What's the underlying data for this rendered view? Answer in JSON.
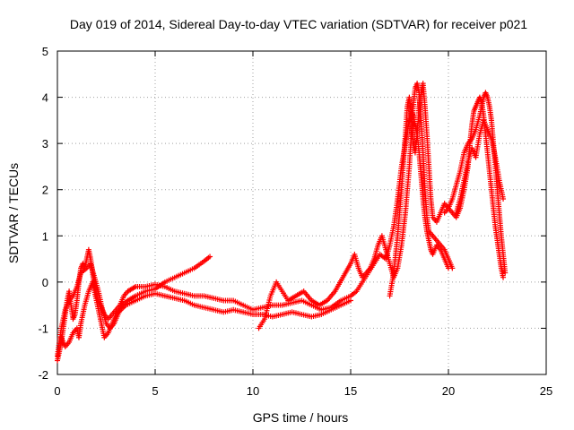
{
  "chart_data": {
    "type": "scatter",
    "title": "Day 019 of 2014, Sidereal Day-to-day VTEC variation (SDTVAR) for receiver p021",
    "xlabel": "GPS time / hours",
    "ylabel": "SDTVAR / TECUs",
    "xlim": [
      0,
      25
    ],
    "ylim": [
      -2,
      5
    ],
    "xticks": [
      0,
      5,
      10,
      15,
      20,
      25
    ],
    "yticks": [
      -2,
      -1,
      0,
      1,
      2,
      3,
      4,
      5
    ],
    "grid": true,
    "marker": "+",
    "color": "#ff0000",
    "series": [
      {
        "name": "p021",
        "segments": [
          [
            [
              0.0,
              -1.7
            ],
            [
              0.1,
              -1.5
            ],
            [
              0.2,
              -1.3
            ],
            [
              0.3,
              -1.0
            ],
            [
              0.4,
              -0.7
            ],
            [
              0.5,
              -0.4
            ],
            [
              0.6,
              -0.2
            ],
            [
              0.7,
              -0.5
            ],
            [
              0.8,
              -0.8
            ],
            [
              0.9,
              -0.7
            ],
            [
              1.0,
              -0.4
            ],
            [
              1.1,
              0.0
            ],
            [
              1.2,
              0.3
            ],
            [
              1.3,
              0.4
            ],
            [
              1.4,
              0.3
            ],
            [
              1.5,
              0.5
            ],
            [
              1.6,
              0.7
            ],
            [
              1.7,
              0.5
            ],
            [
              1.8,
              0.2
            ],
            [
              1.9,
              -0.1
            ],
            [
              2.0,
              -0.3
            ],
            [
              2.2,
              -0.5
            ],
            [
              2.4,
              -0.7
            ],
            [
              2.6,
              -0.8
            ],
            [
              2.8,
              -0.7
            ],
            [
              3.0,
              -0.6
            ],
            [
              3.2,
              -0.5
            ],
            [
              3.4,
              -0.3
            ],
            [
              3.6,
              -0.2
            ],
            [
              3.8,
              -0.15
            ],
            [
              4.0,
              -0.1
            ],
            [
              4.5,
              -0.1
            ],
            [
              5.0,
              -0.05
            ],
            [
              5.5,
              -0.1
            ],
            [
              6.0,
              -0.2
            ],
            [
              6.5,
              -0.25
            ],
            [
              7.0,
              -0.3
            ],
            [
              7.5,
              -0.3
            ],
            [
              8.0,
              -0.35
            ],
            [
              8.5,
              -0.4
            ],
            [
              9.0,
              -0.4
            ],
            [
              9.5,
              -0.5
            ],
            [
              10.0,
              -0.6
            ],
            [
              10.5,
              -0.55
            ],
            [
              11.0,
              -0.5
            ],
            [
              11.5,
              -0.5
            ],
            [
              12.0,
              -0.45
            ],
            [
              12.5,
              -0.4
            ],
            [
              13.0,
              -0.5
            ],
            [
              13.5,
              -0.6
            ],
            [
              14.0,
              -0.55
            ],
            [
              14.5,
              -0.4
            ],
            [
              15.0,
              -0.3
            ],
            [
              15.3,
              -0.2
            ],
            [
              15.6,
              0.0
            ],
            [
              15.9,
              0.2
            ],
            [
              16.2,
              0.4
            ],
            [
              16.5,
              0.6
            ],
            [
              16.8,
              0.5
            ],
            [
              17.0,
              0.8
            ],
            [
              17.2,
              1.2
            ],
            [
              17.4,
              1.8
            ],
            [
              17.6,
              2.5
            ],
            [
              17.8,
              3.0
            ],
            [
              18.0,
              3.5
            ],
            [
              18.1,
              3.7
            ],
            [
              18.2,
              3.6
            ],
            [
              18.3,
              3.4
            ],
            [
              18.4,
              3.2
            ],
            [
              18.5,
              2.8
            ],
            [
              18.6,
              2.3
            ],
            [
              18.7,
              1.8
            ],
            [
              18.8,
              1.4
            ],
            [
              18.9,
              1.1
            ],
            [
              19.0,
              0.9
            ],
            [
              19.1,
              0.7
            ],
            [
              19.2,
              0.6
            ],
            [
              19.4,
              0.8
            ],
            [
              19.6,
              0.7
            ],
            [
              19.8,
              0.5
            ],
            [
              20.0,
              0.3
            ]
          ],
          [
            [
              0.0,
              -1.6
            ],
            [
              0.2,
              -1.0
            ],
            [
              0.4,
              -0.6
            ],
            [
              0.6,
              -0.4
            ],
            [
              0.8,
              -0.3
            ],
            [
              1.0,
              -0.1
            ],
            [
              1.2,
              0.2
            ],
            [
              1.5,
              0.3
            ],
            [
              1.7,
              0.4
            ],
            [
              1.9,
              0.1
            ],
            [
              2.1,
              -0.2
            ],
            [
              2.3,
              -0.6
            ],
            [
              2.5,
              -0.9
            ],
            [
              2.7,
              -1.0
            ],
            [
              2.9,
              -0.9
            ],
            [
              3.1,
              -0.7
            ],
            [
              3.3,
              -0.5
            ],
            [
              3.6,
              -0.4
            ],
            [
              4.0,
              -0.3
            ],
            [
              4.5,
              -0.2
            ],
            [
              5.0,
              -0.15
            ],
            [
              5.5,
              0.0
            ],
            [
              6.0,
              0.1
            ],
            [
              6.5,
              0.2
            ],
            [
              7.0,
              0.3
            ],
            [
              7.5,
              0.45
            ],
            [
              7.8,
              0.55
            ]
          ],
          [
            [
              0.2,
              -1.2
            ],
            [
              0.4,
              -1.4
            ],
            [
              0.6,
              -1.3
            ],
            [
              0.8,
              -1.1
            ],
            [
              1.0,
              -1.0
            ],
            [
              1.1,
              -1.2
            ],
            [
              1.2,
              -0.9
            ],
            [
              1.4,
              -0.5
            ],
            [
              1.6,
              -0.2
            ],
            [
              1.8,
              0.0
            ],
            [
              2.0,
              -0.4
            ],
            [
              2.2,
              -0.8
            ],
            [
              2.4,
              -1.2
            ],
            [
              2.6,
              -1.1
            ],
            [
              2.8,
              -0.9
            ],
            [
              3.0,
              -0.7
            ],
            [
              3.5,
              -0.5
            ],
            [
              4.0,
              -0.4
            ],
            [
              4.5,
              -0.3
            ],
            [
              5.0,
              -0.25
            ],
            [
              5.5,
              -0.3
            ],
            [
              6.0,
              -0.35
            ],
            [
              6.5,
              -0.4
            ],
            [
              7.0,
              -0.5
            ],
            [
              7.5,
              -0.55
            ],
            [
              8.0,
              -0.6
            ],
            [
              8.5,
              -0.65
            ],
            [
              9.0,
              -0.6
            ],
            [
              9.5,
              -0.65
            ],
            [
              10.0,
              -0.7
            ],
            [
              10.5,
              -0.7
            ],
            [
              11.0,
              -0.75
            ],
            [
              11.5,
              -0.7
            ],
            [
              12.0,
              -0.65
            ],
            [
              12.5,
              -0.7
            ],
            [
              13.0,
              -0.75
            ],
            [
              13.5,
              -0.7
            ],
            [
              14.0,
              -0.6
            ],
            [
              14.5,
              -0.5
            ],
            [
              15.0,
              -0.4
            ]
          ],
          [
            [
              10.3,
              -1.0
            ],
            [
              10.6,
              -0.8
            ],
            [
              10.9,
              -0.3
            ],
            [
              11.2,
              0.0
            ],
            [
              11.5,
              -0.2
            ],
            [
              11.8,
              -0.4
            ],
            [
              12.2,
              -0.3
            ],
            [
              12.6,
              -0.2
            ],
            [
              13.0,
              -0.4
            ],
            [
              13.4,
              -0.5
            ],
            [
              13.8,
              -0.4
            ],
            [
              14.2,
              -0.2
            ],
            [
              14.6,
              0.1
            ],
            [
              15.0,
              0.4
            ],
            [
              15.2,
              0.6
            ],
            [
              15.4,
              0.3
            ],
            [
              15.6,
              0.1
            ],
            [
              15.8,
              0.2
            ],
            [
              16.0,
              0.3
            ],
            [
              16.2,
              0.5
            ],
            [
              16.4,
              0.8
            ],
            [
              16.6,
              1.0
            ],
            [
              16.8,
              0.7
            ],
            [
              17.0,
              0.4
            ],
            [
              17.2,
              0.1
            ],
            [
              17.4,
              0.3
            ],
            [
              17.6,
              0.8
            ],
            [
              17.8,
              1.5
            ],
            [
              18.0,
              2.5
            ],
            [
              18.1,
              3.2
            ],
            [
              18.2,
              3.8
            ],
            [
              18.3,
              4.2
            ],
            [
              18.4,
              4.3
            ],
            [
              18.5,
              4.1
            ],
            [
              18.6,
              3.5
            ],
            [
              18.7,
              2.8
            ],
            [
              18.8,
              2.0
            ],
            [
              18.9,
              1.4
            ],
            [
              19.0,
              1.1
            ],
            [
              19.2,
              1.0
            ],
            [
              19.4,
              0.9
            ],
            [
              19.6,
              0.8
            ],
            [
              19.8,
              0.7
            ],
            [
              20.0,
              0.5
            ],
            [
              20.2,
              0.3
            ]
          ],
          [
            [
              17.0,
              -0.3
            ],
            [
              17.2,
              0.2
            ],
            [
              17.4,
              1.0
            ],
            [
              17.5,
              1.5
            ],
            [
              17.6,
              2.0
            ],
            [
              17.7,
              2.6
            ],
            [
              17.8,
              3.2
            ],
            [
              17.9,
              3.8
            ],
            [
              18.0,
              4.0
            ],
            [
              18.1,
              3.6
            ],
            [
              18.2,
              3.0
            ],
            [
              18.3,
              2.8
            ],
            [
              18.4,
              3.2
            ],
            [
              18.5,
              3.8
            ],
            [
              18.6,
              4.1
            ],
            [
              18.7,
              4.3
            ],
            [
              18.8,
              3.8
            ],
            [
              18.9,
              3.2
            ],
            [
              19.0,
              2.5
            ],
            [
              19.1,
              1.8
            ],
            [
              19.2,
              1.4
            ],
            [
              19.4,
              1.3
            ],
            [
              19.6,
              1.5
            ],
            [
              19.8,
              1.7
            ],
            [
              20.0,
              1.6
            ],
            [
              20.2,
              1.5
            ],
            [
              20.4,
              1.4
            ],
            [
              20.6,
              1.6
            ],
            [
              20.8,
              2.0
            ],
            [
              21.0,
              2.5
            ],
            [
              21.1,
              3.0
            ],
            [
              21.2,
              3.4
            ],
            [
              21.3,
              3.7
            ],
            [
              21.4,
              3.8
            ],
            [
              21.5,
              3.9
            ],
            [
              21.6,
              4.0
            ],
            [
              21.7,
              3.9
            ],
            [
              21.8,
              3.6
            ],
            [
              21.9,
              3.2
            ],
            [
              22.0,
              2.8
            ],
            [
              22.1,
              2.4
            ],
            [
              22.2,
              2.0
            ],
            [
              22.3,
              1.6
            ],
            [
              22.4,
              1.2
            ],
            [
              22.5,
              0.9
            ],
            [
              22.6,
              0.6
            ],
            [
              22.7,
              0.3
            ],
            [
              22.8,
              0.1
            ]
          ],
          [
            [
              19.8,
              1.5
            ],
            [
              20.0,
              1.6
            ],
            [
              20.2,
              1.8
            ],
            [
              20.4,
              2.1
            ],
            [
              20.6,
              2.4
            ],
            [
              20.8,
              2.8
            ],
            [
              21.0,
              3.0
            ],
            [
              21.2,
              3.1
            ],
            [
              21.4,
              3.3
            ],
            [
              21.6,
              3.6
            ],
            [
              21.8,
              4.0
            ],
            [
              21.9,
              4.1
            ],
            [
              22.0,
              4.0
            ],
            [
              22.1,
              3.8
            ],
            [
              22.2,
              3.5
            ],
            [
              22.3,
              3.0
            ],
            [
              22.4,
              2.5
            ],
            [
              22.5,
              2.0
            ],
            [
              22.6,
              1.5
            ],
            [
              22.7,
              1.0
            ],
            [
              22.8,
              0.6
            ],
            [
              22.9,
              0.2
            ]
          ],
          [
            [
              20.4,
              1.5
            ],
            [
              20.6,
              1.8
            ],
            [
              20.8,
              2.2
            ],
            [
              21.0,
              2.6
            ],
            [
              21.2,
              2.9
            ],
            [
              21.4,
              2.7
            ],
            [
              21.6,
              3.2
            ],
            [
              21.8,
              3.5
            ],
            [
              22.0,
              3.3
            ],
            [
              22.2,
              3.1
            ],
            [
              22.4,
              2.7
            ],
            [
              22.6,
              2.2
            ],
            [
              22.8,
              1.8
            ]
          ]
        ]
      }
    ]
  }
}
